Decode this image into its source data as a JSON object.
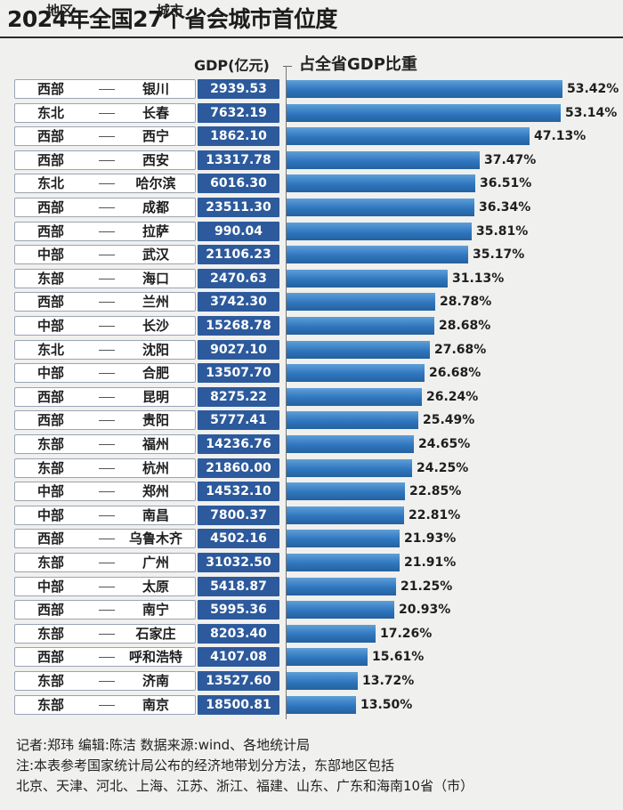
{
  "title": "2024年全国27个省会城市首位度",
  "headers": {
    "region": "地区",
    "city": "城市",
    "gdp": "GDP(亿元)",
    "share": "占全省GDP比重"
  },
  "chart_data": {
    "type": "bar",
    "orientation": "horizontal",
    "title": "2024年全国27个省会城市首位度",
    "series_label": "占全省GDP比重",
    "unit": "%",
    "xlim": [
      0,
      55
    ],
    "rows": [
      {
        "region": "西部",
        "city": "银川",
        "gdp": "2939.53",
        "share": 53.42,
        "share_label": "53.42%"
      },
      {
        "region": "东北",
        "city": "长春",
        "gdp": "7632.19",
        "share": 53.14,
        "share_label": "53.14%"
      },
      {
        "region": "西部",
        "city": "西宁",
        "gdp": "1862.10",
        "share": 47.13,
        "share_label": "47.13%"
      },
      {
        "region": "西部",
        "city": "西安",
        "gdp": "13317.78",
        "share": 37.47,
        "share_label": "37.47%"
      },
      {
        "region": "东北",
        "city": "哈尔滨",
        "gdp": "6016.30",
        "share": 36.51,
        "share_label": "36.51%"
      },
      {
        "region": "西部",
        "city": "成都",
        "gdp": "23511.30",
        "share": 36.34,
        "share_label": "36.34%"
      },
      {
        "region": "西部",
        "city": "拉萨",
        "gdp": "990.04",
        "share": 35.81,
        "share_label": "35.81%"
      },
      {
        "region": "中部",
        "city": "武汉",
        "gdp": "21106.23",
        "share": 35.17,
        "share_label": "35.17%"
      },
      {
        "region": "东部",
        "city": "海口",
        "gdp": "2470.63",
        "share": 31.13,
        "share_label": "31.13%"
      },
      {
        "region": "西部",
        "city": "兰州",
        "gdp": "3742.30",
        "share": 28.78,
        "share_label": "28.78%"
      },
      {
        "region": "中部",
        "city": "长沙",
        "gdp": "15268.78",
        "share": 28.68,
        "share_label": "28.68%"
      },
      {
        "region": "东北",
        "city": "沈阳",
        "gdp": "9027.10",
        "share": 27.68,
        "share_label": "27.68%"
      },
      {
        "region": "中部",
        "city": "合肥",
        "gdp": "13507.70",
        "share": 26.68,
        "share_label": "26.68%"
      },
      {
        "region": "西部",
        "city": "昆明",
        "gdp": "8275.22",
        "share": 26.24,
        "share_label": "26.24%"
      },
      {
        "region": "西部",
        "city": "贵阳",
        "gdp": "5777.41",
        "share": 25.49,
        "share_label": "25.49%"
      },
      {
        "region": "东部",
        "city": "福州",
        "gdp": "14236.76",
        "share": 24.65,
        "share_label": "24.65%"
      },
      {
        "region": "东部",
        "city": "杭州",
        "gdp": "21860.00",
        "share": 24.25,
        "share_label": "24.25%"
      },
      {
        "region": "中部",
        "city": "郑州",
        "gdp": "14532.10",
        "share": 22.85,
        "share_label": "22.85%"
      },
      {
        "region": "中部",
        "city": "南昌",
        "gdp": "7800.37",
        "share": 22.81,
        "share_label": "22.81%"
      },
      {
        "region": "西部",
        "city": "乌鲁木齐",
        "gdp": "4502.16",
        "share": 21.93,
        "share_label": "21.93%"
      },
      {
        "region": "东部",
        "city": "广州",
        "gdp": "31032.50",
        "share": 21.91,
        "share_label": "21.91%"
      },
      {
        "region": "中部",
        "city": "太原",
        "gdp": "5418.87",
        "share": 21.25,
        "share_label": "21.25%"
      },
      {
        "region": "西部",
        "city": "南宁",
        "gdp": "5995.36",
        "share": 20.93,
        "share_label": "20.93%"
      },
      {
        "region": "东部",
        "city": "石家庄",
        "gdp": "8203.40",
        "share": 17.26,
        "share_label": "17.26%"
      },
      {
        "region": "西部",
        "city": "呼和浩特",
        "gdp": "4107.08",
        "share": 15.61,
        "share_label": "15.61%"
      },
      {
        "region": "东部",
        "city": "济南",
        "gdp": "13527.60",
        "share": 13.72,
        "share_label": "13.72%"
      },
      {
        "region": "东部",
        "city": "南京",
        "gdp": "18500.81",
        "share": 13.5,
        "share_label": "13.50%"
      }
    ]
  },
  "notes": {
    "line1": "记者:郑玮  编辑:陈洁  数据来源:wind、各地统计局",
    "line2": "注:本表参考国家统计局公布的经济地带划分方法，东部地区包括",
    "line3": "北京、天津、河北、上海、江苏、浙江、福建、山东、广东和海南10省（市）"
  },
  "colors": {
    "gdp_box": "#2d5a9c",
    "bar_light": "#5f9fd8",
    "bar_dark": "#25619e",
    "background": "#f0f0ee"
  }
}
